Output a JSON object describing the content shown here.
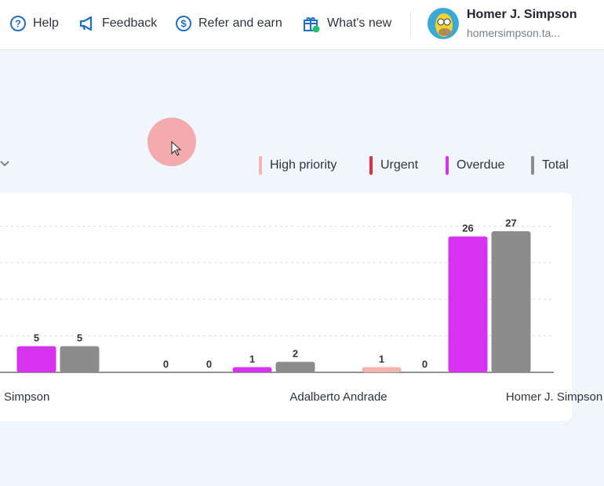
{
  "header": {
    "help": "Help",
    "feedback": "Feedback",
    "refer": "Refer and earn",
    "whats_new": "What's new",
    "user_name": "Homer J. Simpson",
    "user_org": "homersimpson.ta..."
  },
  "legend": [
    {
      "label": "High priority",
      "color": "#f4b3ab"
    },
    {
      "label": "Urgent",
      "color": "#e8293f"
    },
    {
      "label": "Overdue",
      "color": "#d633ee"
    },
    {
      "label": "Total",
      "color": "#8c8c8c"
    }
  ],
  "chart_data": {
    "type": "bar",
    "categories": [
      "Simpson",
      "Adalberto Andrade",
      "Homer J. Simpson"
    ],
    "series": [
      {
        "name": "High priority",
        "values": [
          null,
          0,
          1
        ]
      },
      {
        "name": "Urgent",
        "values": [
          null,
          0,
          0
        ]
      },
      {
        "name": "Overdue",
        "values": [
          5,
          1,
          26
        ]
      },
      {
        "name": "Total",
        "values": [
          5,
          2,
          27
        ]
      }
    ],
    "ylim": [
      0,
      28
    ],
    "gridlines": [
      7,
      14,
      21,
      28
    ],
    "legend_position": "top-right"
  }
}
